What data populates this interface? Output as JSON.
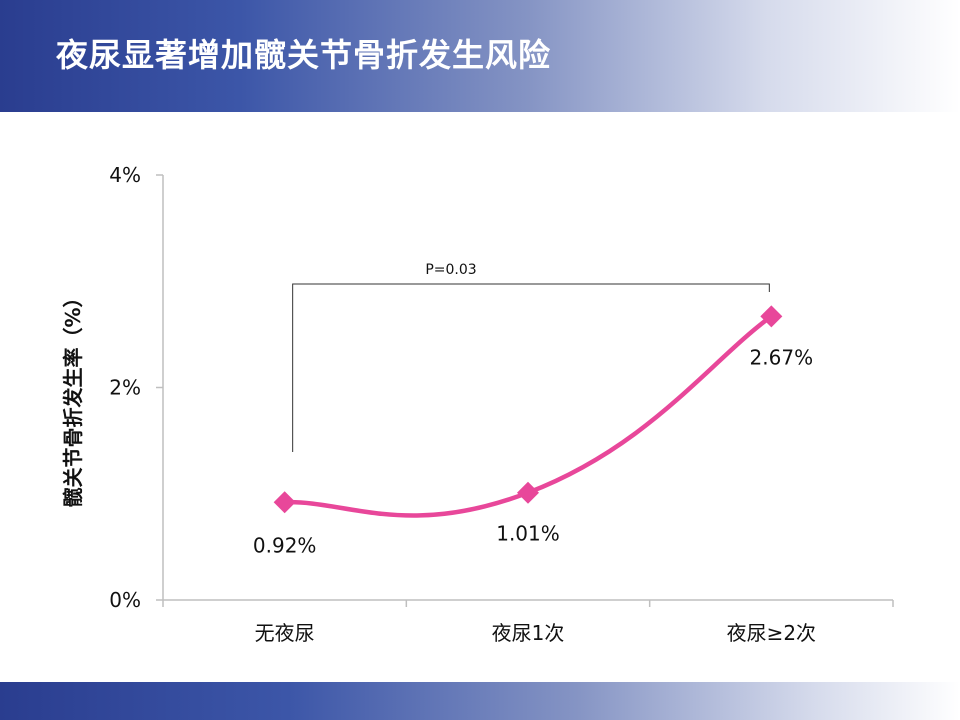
{
  "slide": {
    "title": "夜尿显著增加髋关节骨折发生风险"
  },
  "chart_data": {
    "type": "line",
    "title": "",
    "xlabel": "",
    "ylabel": "髋关节骨折发生率（%）",
    "categories": [
      "无夜尿",
      "夜尿1次",
      "夜尿≥2次"
    ],
    "series": [
      {
        "values": [
          0.92,
          1.01,
          2.67
        ],
        "color": "#e8479a",
        "marker": "diamond",
        "smooth": true
      }
    ],
    "data_labels": [
      "0.92%",
      "1.01%",
      "2.67%"
    ],
    "ylim": [
      0,
      4
    ],
    "yticks": [
      0,
      2,
      4
    ],
    "ytick_labels": [
      "0%",
      "2%",
      "4%"
    ],
    "grid": false,
    "annotation": {
      "text": "P=0.03",
      "from_category": 0,
      "to_category": 2
    }
  }
}
